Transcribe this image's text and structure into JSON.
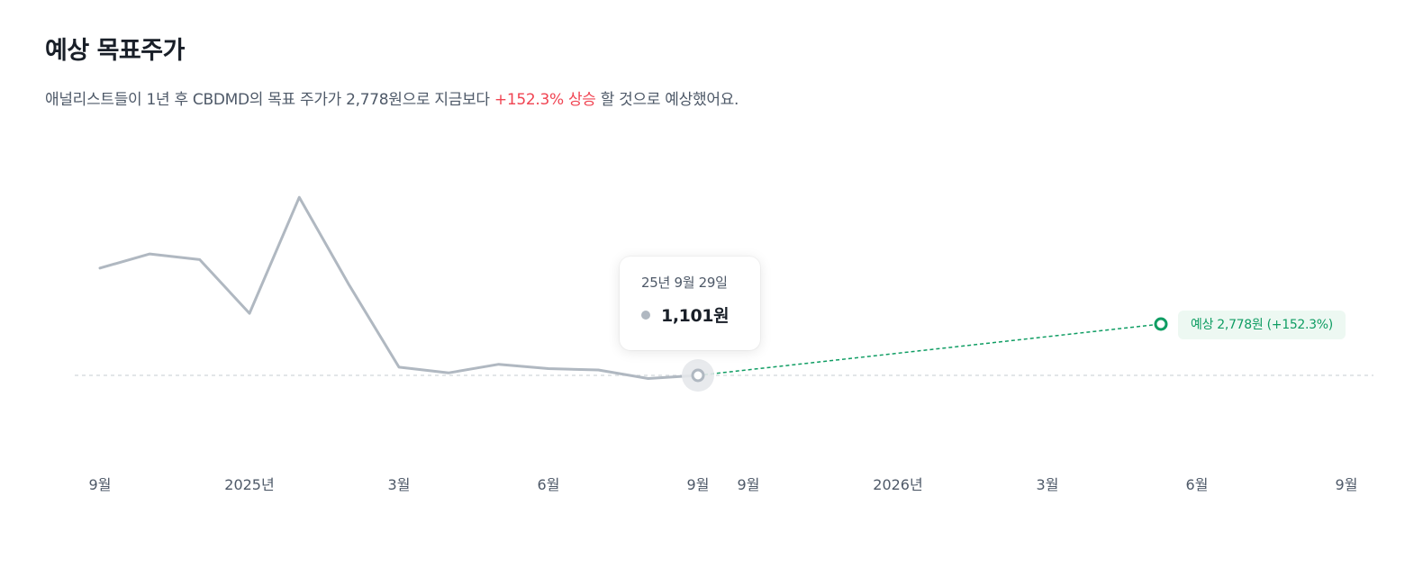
{
  "header": {
    "title": "예상 목표주가",
    "desc_prefix": "애널리스트들이 1년 후 CBDMD의 목표 주가가 2,778원으로 지금보다 ",
    "desc_highlight": "+152.3% 상승",
    "desc_suffix": " 할 것으로 예상했어요."
  },
  "tooltip": {
    "date": "25년 9월 29일",
    "value": "1,101원"
  },
  "target_badge": "예상 2,778원 (+152.3%)",
  "colors": {
    "history_line": "#b0b8c1",
    "target_line": "#0f9d63",
    "baseline": "#d1d6db",
    "highlight_text": "#f04452",
    "axis_text": "#4e5968"
  },
  "chart_data": {
    "type": "line",
    "ylabel": "",
    "xlabel": "",
    "series": [
      {
        "values": [
          1480,
          1530,
          1510,
          1320,
          1730,
          1420,
          1130,
          1110,
          1140,
          1125,
          1120,
          1090,
          1101
        ]
      }
    ],
    "current_price": 1101,
    "target_price": 2778,
    "target_change": "+152.3%",
    "x_tick_labels": [
      "9월",
      "2025년",
      "3월",
      "6월",
      "9월",
      "9월",
      "2026년",
      "3월",
      "6월",
      "9월"
    ],
    "grid": false
  }
}
